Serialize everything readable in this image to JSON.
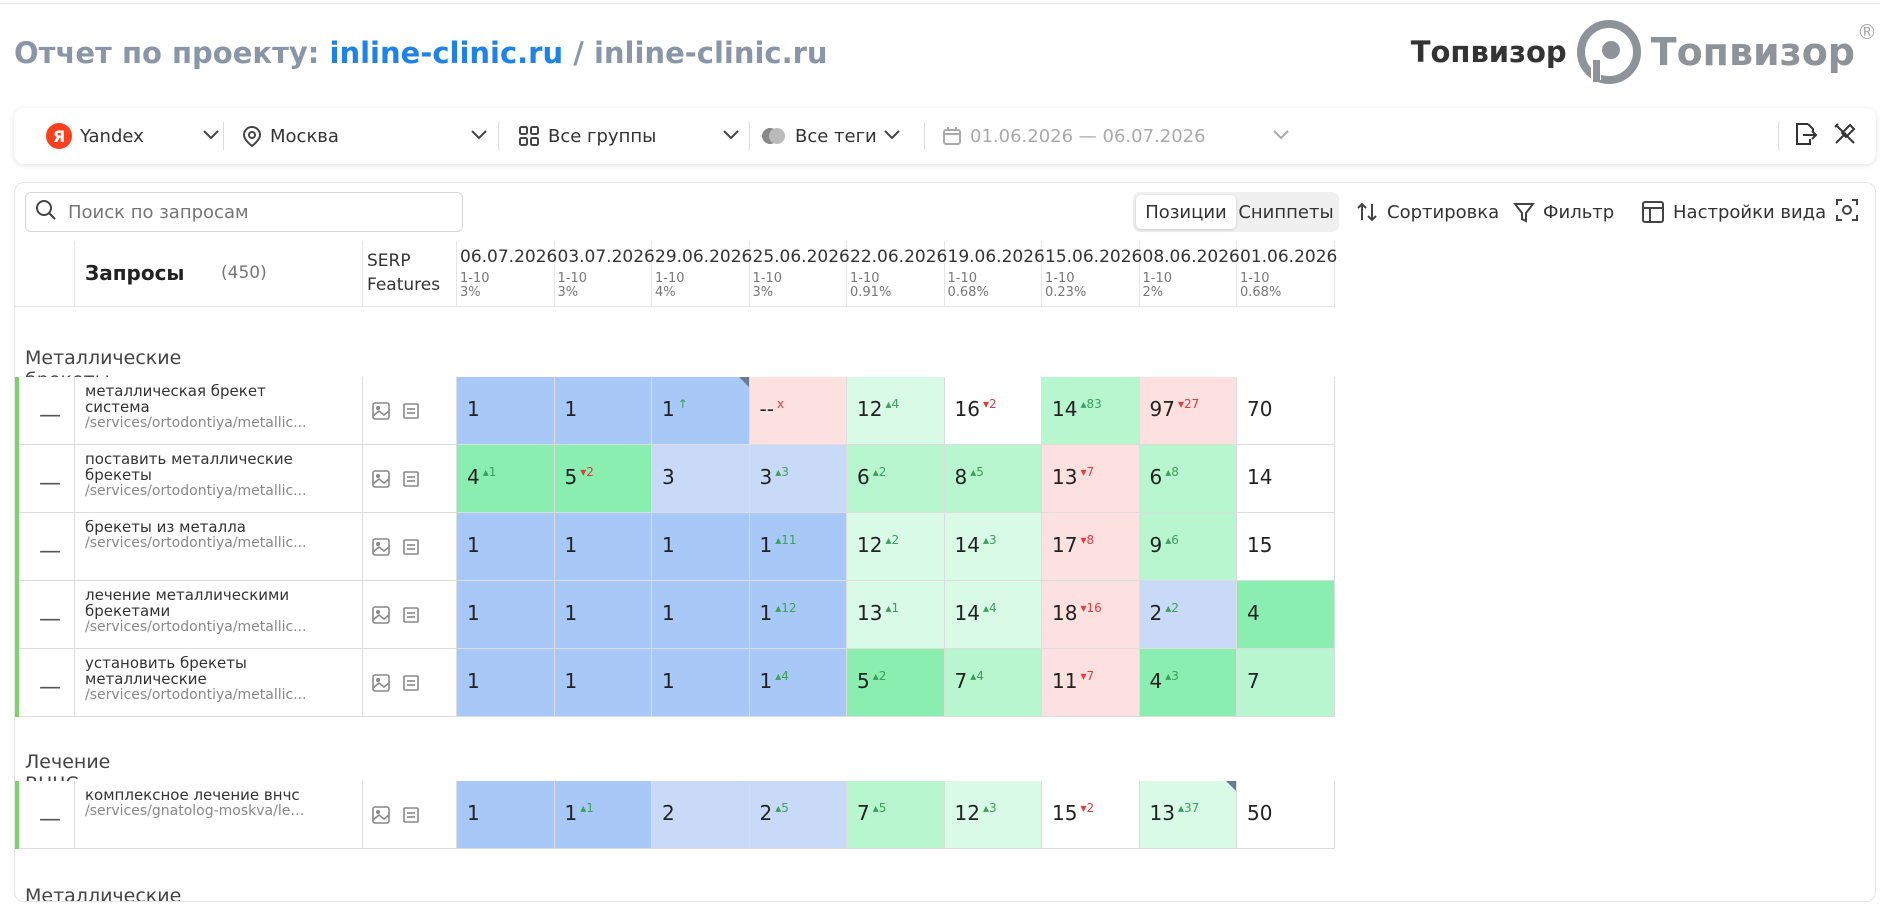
{
  "header": {
    "title_prefix": "Отчет по проекту:",
    "project_name": "inline-clinic.ru",
    "separator": "/",
    "project_domain": "inline-clinic.ru"
  },
  "brand": {
    "name": "Топвизор",
    "logo_text": "Топвизор",
    "registered": "®"
  },
  "toolbar": {
    "engine": "Yandex",
    "engine_icon_letter": "Я",
    "region": "Москва",
    "groups": "Все группы",
    "tags": "Все теги",
    "dates": "01.06.2026 — 06.07.2026"
  },
  "table_toolbar": {
    "search_placeholder": "Поиск по запросам",
    "view_tabs": [
      "Позиции",
      "Сниппеты"
    ],
    "sort": "Сортировка",
    "filter": "Фильтр",
    "view_settings": "Настройки вида"
  },
  "columns": {
    "queries_label": "Запросы",
    "queries_count": "(450)",
    "serp_line1": "SERP",
    "serp_line2": "Features",
    "dates": [
      {
        "date": "06.07.2026",
        "range": "1-10",
        "pct": "3%"
      },
      {
        "date": "03.07.2026",
        "range": "1-10",
        "pct": "3%"
      },
      {
        "date": "29.06.2026",
        "range": "1-10",
        "pct": "4%"
      },
      {
        "date": "25.06.2026",
        "range": "1-10",
        "pct": "3%"
      },
      {
        "date": "22.06.2026",
        "range": "1-10",
        "pct": "0.91%"
      },
      {
        "date": "19.06.2026",
        "range": "1-10",
        "pct": "0.68%"
      },
      {
        "date": "15.06.2026",
        "range": "1-10",
        "pct": "0.23%"
      },
      {
        "date": "08.06.2026",
        "range": "1-10",
        "pct": "2%"
      },
      {
        "date": "01.06.2026",
        "range": "1-10",
        "pct": "0.68%"
      }
    ]
  },
  "colors": {
    "top1": "#a8c8f8",
    "top3": "#c8daf8",
    "top5": "#8aeeb0",
    "top10": "#b8f6d0",
    "top20": "#d8fae6",
    "out": "#fde0e0",
    "accent": "#1e82e6"
  },
  "groups": [
    {
      "name": "Металлические брекеты",
      "rows": [
        {
          "query": "металлическая брекет система",
          "url": "/services/ortodontiya/metallic...",
          "cells": [
            {
              "v": "1",
              "c": "top1"
            },
            {
              "v": "1",
              "c": "top1"
            },
            {
              "v": "1",
              "d": "↑",
              "dir": "up",
              "c": "top1",
              "corner": true
            },
            {
              "v": "--",
              "d": "x",
              "dir": "dn",
              "c": "out"
            },
            {
              "v": "12",
              "d": "4",
              "dir": "up",
              "c": "top20"
            },
            {
              "v": "16",
              "d": "2",
              "dir": "dn",
              "c": "white"
            },
            {
              "v": "14",
              "d": "83",
              "dir": "up",
              "c": "top10"
            },
            {
              "v": "97",
              "d": "27",
              "dir": "dn",
              "c": "out"
            },
            {
              "v": "70",
              "c": "white"
            }
          ]
        },
        {
          "query": "поставить металлические брекеты",
          "url": "/services/ortodontiya/metallic...",
          "cells": [
            {
              "v": "4",
              "d": "1",
              "dir": "up",
              "c": "top5"
            },
            {
              "v": "5",
              "d": "2",
              "dir": "dn",
              "c": "top5"
            },
            {
              "v": "3",
              "c": "top3"
            },
            {
              "v": "3",
              "d": "3",
              "dir": "up",
              "c": "top3"
            },
            {
              "v": "6",
              "d": "2",
              "dir": "up",
              "c": "top10"
            },
            {
              "v": "8",
              "d": "5",
              "dir": "up",
              "c": "top10"
            },
            {
              "v": "13",
              "d": "7",
              "dir": "dn",
              "c": "out"
            },
            {
              "v": "6",
              "d": "8",
              "dir": "up",
              "c": "top10"
            },
            {
              "v": "14",
              "c": "white"
            }
          ]
        },
        {
          "query": "брекеты из металла",
          "url": "/services/ortodontiya/metallic...",
          "cells": [
            {
              "v": "1",
              "c": "top1"
            },
            {
              "v": "1",
              "c": "top1"
            },
            {
              "v": "1",
              "c": "top1"
            },
            {
              "v": "1",
              "d": "11",
              "dir": "up",
              "c": "top1"
            },
            {
              "v": "12",
              "d": "2",
              "dir": "up",
              "c": "top20"
            },
            {
              "v": "14",
              "d": "3",
              "dir": "up",
              "c": "top20"
            },
            {
              "v": "17",
              "d": "8",
              "dir": "dn",
              "c": "out"
            },
            {
              "v": "9",
              "d": "6",
              "dir": "up",
              "c": "top10"
            },
            {
              "v": "15",
              "c": "white"
            }
          ]
        },
        {
          "query": "лечение металлическими брекетами",
          "url": "/services/ortodontiya/metallic...",
          "cells": [
            {
              "v": "1",
              "c": "top1"
            },
            {
              "v": "1",
              "c": "top1"
            },
            {
              "v": "1",
              "c": "top1"
            },
            {
              "v": "1",
              "d": "12",
              "dir": "up",
              "c": "top1"
            },
            {
              "v": "13",
              "d": "1",
              "dir": "up",
              "c": "top20"
            },
            {
              "v": "14",
              "d": "4",
              "dir": "up",
              "c": "top20"
            },
            {
              "v": "18",
              "d": "16",
              "dir": "dn",
              "c": "out"
            },
            {
              "v": "2",
              "d": "2",
              "dir": "up",
              "c": "top3"
            },
            {
              "v": "4",
              "c": "top5"
            }
          ]
        },
        {
          "query": "установить брекеты металлические",
          "url": "/services/ortodontiya/metallic...",
          "cells": [
            {
              "v": "1",
              "c": "top1"
            },
            {
              "v": "1",
              "c": "top1"
            },
            {
              "v": "1",
              "c": "top1"
            },
            {
              "v": "1",
              "d": "4",
              "dir": "up",
              "c": "top1"
            },
            {
              "v": "5",
              "d": "2",
              "dir": "up",
              "c": "top5"
            },
            {
              "v": "7",
              "d": "4",
              "dir": "up",
              "c": "top10"
            },
            {
              "v": "11",
              "d": "7",
              "dir": "dn",
              "c": "out"
            },
            {
              "v": "4",
              "d": "3",
              "dir": "up",
              "c": "top5"
            },
            {
              "v": "7",
              "c": "top10"
            }
          ]
        }
      ]
    },
    {
      "name": "Лечение ВНЧС",
      "rows": [
        {
          "query": "комплексное лечение внчс",
          "url": "/services/gnatolog-moskva/lec...",
          "cells": [
            {
              "v": "1",
              "c": "top1"
            },
            {
              "v": "1",
              "d": "1",
              "dir": "up",
              "c": "top1"
            },
            {
              "v": "2",
              "c": "top3"
            },
            {
              "v": "2",
              "d": "5",
              "dir": "up",
              "c": "top3"
            },
            {
              "v": "7",
              "d": "5",
              "dir": "up",
              "c": "top10"
            },
            {
              "v": "12",
              "d": "3",
              "dir": "up",
              "c": "top20"
            },
            {
              "v": "15",
              "d": "2",
              "dir": "dn",
              "c": "white"
            },
            {
              "v": "13",
              "d": "37",
              "dir": "up",
              "c": "top20",
              "corner": true
            },
            {
              "v": "50",
              "c": "white"
            }
          ]
        }
      ]
    },
    {
      "name": "Металлические брекеты",
      "rows": []
    }
  ]
}
